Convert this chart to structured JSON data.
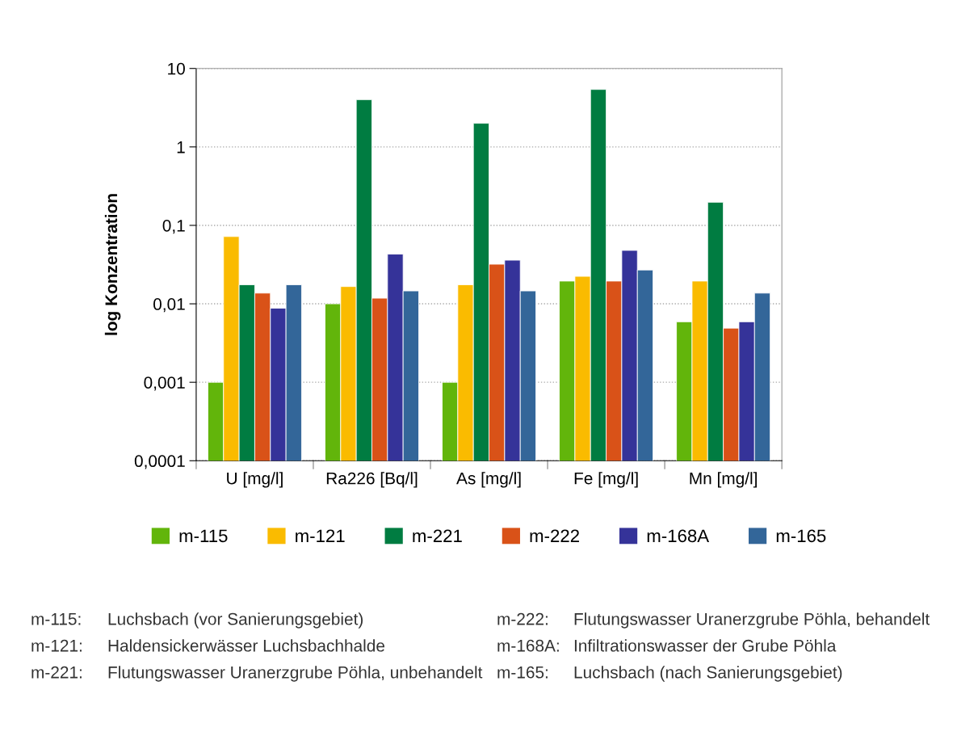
{
  "chart_data": {
    "type": "bar",
    "ylabel": "log Konzentration",
    "categories": [
      "U [mg/l]",
      "Ra226 [Bq/l]",
      "As [mg/l]",
      "Fe [mg/l]",
      "Mn [mg/l]"
    ],
    "series": [
      {
        "name": "m-115",
        "color": "#62b50b",
        "values": [
          0.001,
          0.01,
          0.001,
          0.0195,
          0.0059
        ]
      },
      {
        "name": "m-121",
        "color": "#fabb00",
        "values": [
          0.072,
          0.0166,
          0.0175,
          0.0224,
          0.0195
        ]
      },
      {
        "name": "m-221",
        "color": "#007c41",
        "values": [
          0.0175,
          4.0,
          2.0,
          5.4,
          0.197
        ]
      },
      {
        "name": "m-222",
        "color": "#d95218",
        "values": [
          0.0137,
          0.0118,
          0.032,
          0.0195,
          0.0049
        ]
      },
      {
        "name": "m-168A",
        "color": "#353399",
        "values": [
          0.0088,
          0.043,
          0.036,
          0.048,
          0.0059
        ]
      },
      {
        "name": "m-165",
        "color": "#336699",
        "values": [
          0.0175,
          0.0146,
          0.0146,
          0.027,
          0.0137
        ]
      }
    ],
    "log": "y",
    "ylim": [
      0.0001,
      10
    ],
    "yticks": [
      {
        "value": 0.0001,
        "label": "0,0001"
      },
      {
        "value": 0.001,
        "label": "0,001"
      },
      {
        "value": 0.01,
        "label": "0,01"
      },
      {
        "value": 0.1,
        "label": "0,1"
      },
      {
        "value": 1,
        "label": "1"
      },
      {
        "value": 10,
        "label": "10"
      }
    ],
    "grid": "y",
    "legend": "bottom",
    "annotations": [
      "m-115:",
      "Luchsbach (vor Sanierungsgebiet)",
      "m-121:",
      "Haldensickerwässer Luchsbachhalde",
      "m-221:",
      "Flutungswasser Uranerzgrube Pöhla, unbehandelt",
      "m-222:",
      "Flutungswasser Uranerzgrube Pöhla, behandelt",
      "m-168A:",
      "Infiltrationswasser der Grube Pöhla",
      "m-165:",
      "Luchsbach (nach Sanierungsgebiet)"
    ]
  }
}
